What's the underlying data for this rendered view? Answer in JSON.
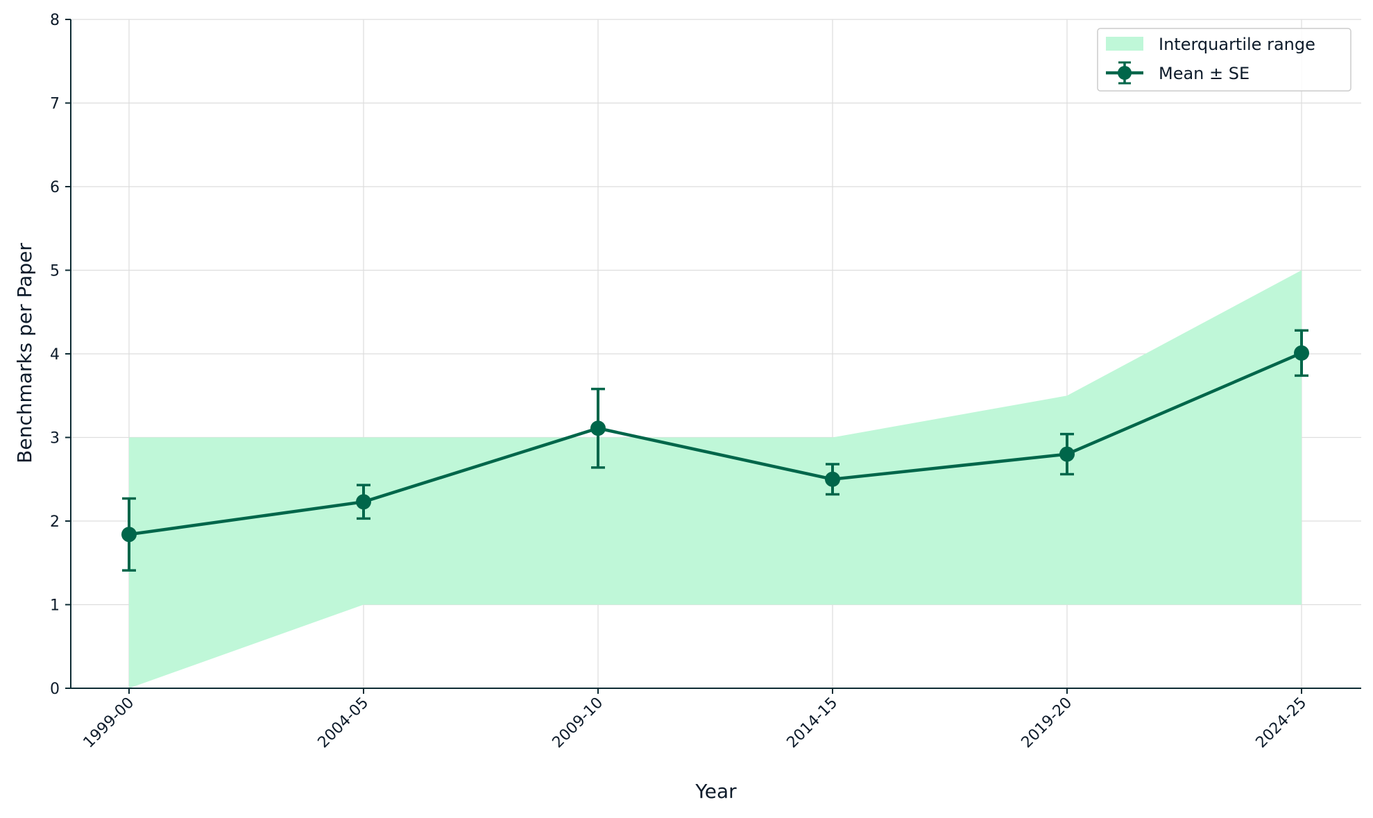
{
  "colors": {
    "line": "#00664a",
    "band": "#bff7d8",
    "grid": "#dddddd",
    "axis": "#0d2b33",
    "text": "#0d1b2a"
  },
  "chart_data": {
    "type": "line",
    "title": "",
    "xlabel": "Year",
    "ylabel": "Benchmarks per Paper",
    "categories": [
      "1999-00",
      "2004-05",
      "2009-10",
      "2014-15",
      "2019-20",
      "2024-25"
    ],
    "ylim": [
      0,
      8
    ],
    "yticks": [
      0,
      1,
      2,
      3,
      4,
      5,
      6,
      7,
      8
    ],
    "grid": true,
    "legend_position": "top-right",
    "legend": [
      "Interquartile range",
      "Mean ± SE"
    ],
    "series": [
      {
        "name": "Mean ± SE",
        "values": [
          1.84,
          2.23,
          3.11,
          2.5,
          2.8,
          4.01
        ],
        "se": [
          0.43,
          0.2,
          0.47,
          0.18,
          0.24,
          0.27
        ]
      }
    ],
    "band": {
      "name": "Interquartile range",
      "lower": [
        0,
        1,
        1,
        1,
        1,
        1
      ],
      "upper": [
        3,
        3,
        3,
        3,
        3.5,
        5
      ]
    },
    "x_tick_rotation_deg": 45
  }
}
